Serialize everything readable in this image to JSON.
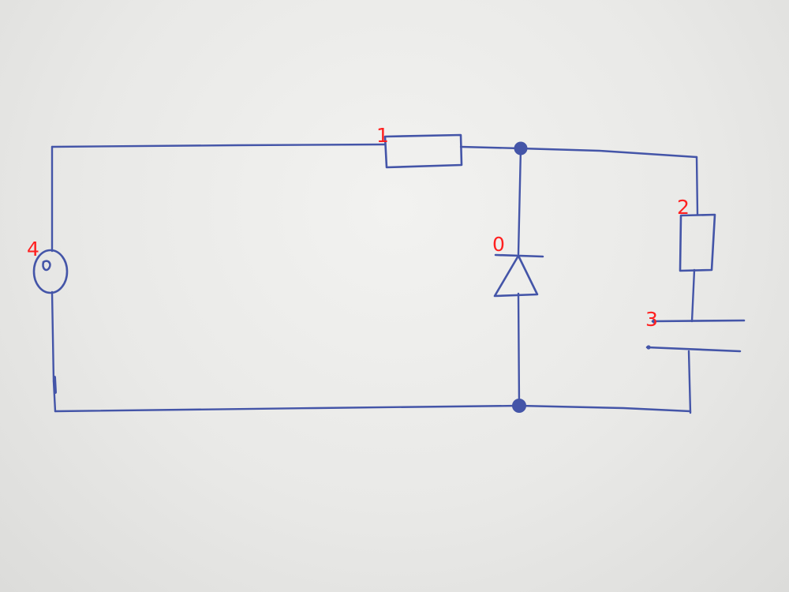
{
  "colors": {
    "ink": "#4455a8",
    "label": "#ff2020"
  },
  "labels": {
    "diode": "0",
    "resistor_top": "1",
    "resistor_right": "2",
    "capacitor": "3",
    "source": "4"
  }
}
